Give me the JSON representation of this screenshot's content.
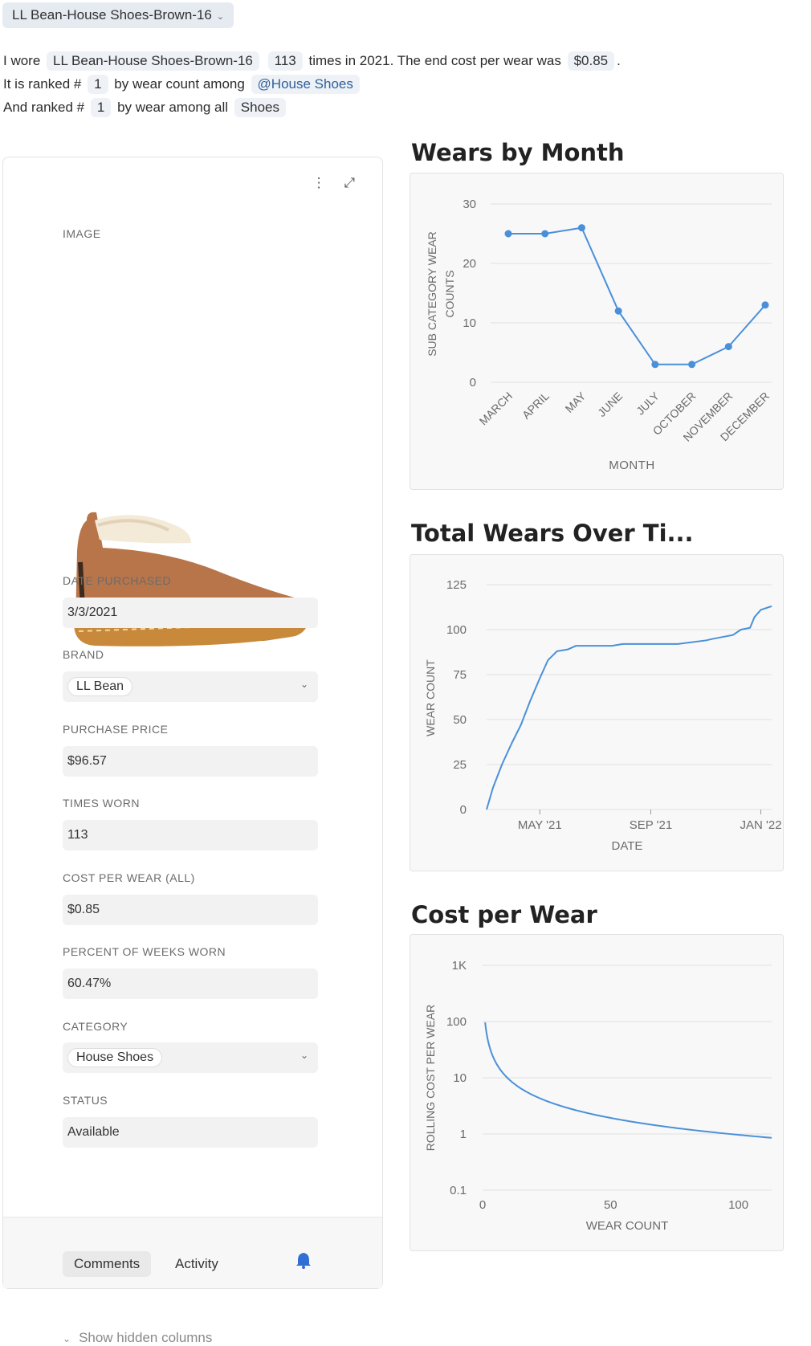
{
  "header": {
    "record_name": "LL Bean-House Shoes-Brown-16",
    "caret": "⌄"
  },
  "summary": {
    "line1_prefix": "I wore",
    "item_name": "LL Bean-House Shoes-Brown-16",
    "times": "113",
    "line1_mid": "times in 2021. The end cost per wear was",
    "cost_per_wear": "$0.85",
    "line1_end": ".",
    "line2_prefix": "It is ranked #",
    "rank_category": "1",
    "line2_mid": "by wear count among",
    "category_link": "@House Shoes",
    "line3_prefix": "And ranked #",
    "rank_all": "1",
    "line3_mid": "by wear among all",
    "all_group": "Shoes"
  },
  "card": {
    "image_label": "IMAGE",
    "fields": {
      "date_purchased": {
        "label": "DATE PURCHASED",
        "value": "3/3/2021"
      },
      "brand": {
        "label": "BRAND",
        "value": "LL Bean"
      },
      "purchase_price": {
        "label": "PURCHASE PRICE",
        "value": "$96.57"
      },
      "times_worn": {
        "label": "TIMES WORN",
        "value": "113"
      },
      "cost_per_wear_all": {
        "label": "COST PER WEAR (ALL)",
        "value": "$0.85"
      },
      "percent_weeks": {
        "label": "PERCENT OF WEEKS WORN",
        "value": "60.47%"
      },
      "category": {
        "label": "CATEGORY",
        "value": "House Shoes"
      },
      "status": {
        "label": "STATUS",
        "value": "Available"
      }
    },
    "show_hidden": "Show hidden columns",
    "tabs": {
      "comments": "Comments",
      "activity": "Activity"
    }
  },
  "chart_data": [
    {
      "type": "line",
      "title": "Wears by Month",
      "xlabel": "MONTH",
      "ylabel": "SUB CATEGORY WEAR COUNTS",
      "categories": [
        "MARCH",
        "APRIL",
        "MAY",
        "JUNE",
        "JULY",
        "OCTOBER",
        "NOVEMBER",
        "DECEMBER"
      ],
      "values": [
        25,
        25,
        26,
        12,
        3,
        3,
        6,
        13
      ],
      "yticks": [
        "0",
        "10",
        "20",
        "30"
      ],
      "ylim": [
        0,
        30
      ],
      "markers": true,
      "color": "#4a90d9"
    },
    {
      "type": "line",
      "title": "Total Wears Over Ti...",
      "xlabel": "DATE",
      "ylabel": "WEAR COUNT",
      "xticks": [
        "MAY '21",
        "SEP '21",
        "JAN '22"
      ],
      "yticks": [
        "0",
        "25",
        "50",
        "75",
        "100",
        "125"
      ],
      "ylim": [
        0,
        125
      ],
      "xlim": [
        "2021-03-03",
        "2022-01-13"
      ],
      "x": [
        "2021-03-03",
        "2021-03-10",
        "2021-03-20",
        "2021-03-31",
        "2021-04-10",
        "2021-04-20",
        "2021-05-01",
        "2021-05-10",
        "2021-05-20",
        "2021-06-01",
        "2021-06-10",
        "2021-06-20",
        "2021-07-10",
        "2021-07-20",
        "2021-08-01",
        "2021-09-01",
        "2021-10-01",
        "2021-11-01",
        "2021-11-10",
        "2021-12-01",
        "2021-12-10",
        "2021-12-20",
        "2021-12-25",
        "2022-01-01",
        "2022-01-13"
      ],
      "values": [
        0,
        12,
        25,
        37,
        47,
        60,
        73,
        83,
        88,
        89,
        91,
        91,
        91,
        91,
        92,
        92,
        92,
        94,
        95,
        97,
        100,
        101,
        107,
        111,
        113
      ],
      "color": "#4a90d9"
    },
    {
      "type": "line",
      "title": "Cost per Wear",
      "xlabel": "WEAR COUNT",
      "ylabel": "ROLLING COST PER WEAR",
      "log_y": true,
      "xticks": [
        "0",
        "50",
        "100"
      ],
      "yticks": [
        "0.1",
        "1",
        "10",
        "100",
        "1K"
      ],
      "xlim": [
        0,
        113
      ],
      "ylim": [
        0.1,
        1000
      ],
      "x": [
        1,
        2,
        3,
        5,
        8,
        12,
        20,
        30,
        50,
        75,
        100,
        113
      ],
      "values": [
        96.57,
        48.29,
        32.19,
        19.31,
        12.07,
        8.05,
        4.83,
        3.22,
        1.93,
        1.29,
        0.97,
        0.85
      ],
      "color": "#4a90d9"
    }
  ]
}
